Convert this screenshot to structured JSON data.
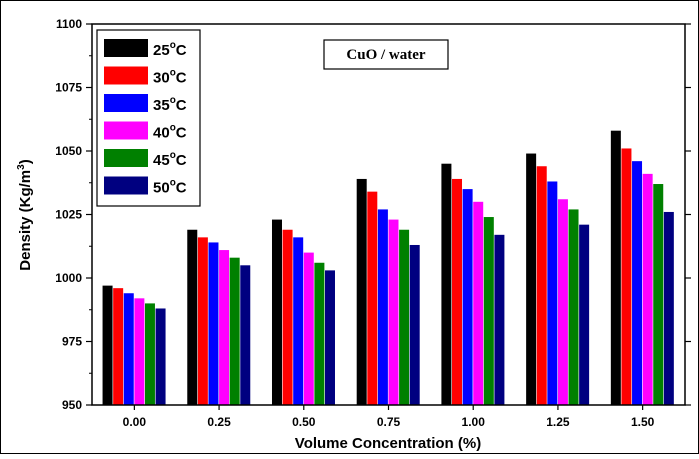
{
  "chart_data": {
    "type": "bar",
    "annotation": "CuO / water",
    "xlabel": "Volume Concentration (%)",
    "ylabel_main": "Density (Kg/m",
    "ylabel_sup": "3",
    "ylabel_end": ")",
    "ylim": [
      950,
      1100
    ],
    "yticks": [
      950,
      975,
      1000,
      1025,
      1050,
      1075,
      1100
    ],
    "categories": [
      "0.00",
      "0.25",
      "0.50",
      "0.75",
      "1.00",
      "1.25",
      "1.50"
    ],
    "legend_position": "top-left",
    "series": [
      {
        "name": "25",
        "unit": "C",
        "color": "#000000",
        "values": [
          997,
          1019,
          1023,
          1039,
          1045,
          1049,
          1058
        ]
      },
      {
        "name": "30",
        "unit": "C",
        "color": "#ff0000",
        "values": [
          996,
          1016,
          1019,
          1034,
          1039,
          1044,
          1051
        ]
      },
      {
        "name": "35",
        "unit": "C",
        "color": "#0000ff",
        "values": [
          994,
          1014,
          1016,
          1027,
          1035,
          1038,
          1046
        ]
      },
      {
        "name": "40",
        "unit": "C",
        "color": "#ff00ff",
        "values": [
          992,
          1011,
          1010,
          1023,
          1030,
          1031,
          1041
        ]
      },
      {
        "name": "45",
        "unit": "C",
        "color": "#008000",
        "values": [
          990,
          1008,
          1006,
          1019,
          1024,
          1027,
          1037
        ]
      },
      {
        "name": "50",
        "unit": "C",
        "color": "#000080",
        "values": [
          988,
          1005,
          1003,
          1013,
          1017,
          1021,
          1026
        ]
      }
    ]
  }
}
